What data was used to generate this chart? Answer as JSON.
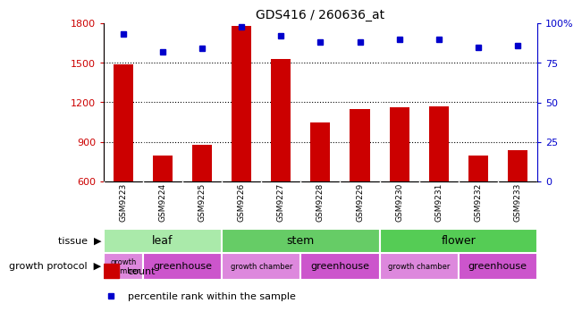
{
  "title": "GDS416 / 260636_at",
  "samples": [
    "GSM9223",
    "GSM9224",
    "GSM9225",
    "GSM9226",
    "GSM9227",
    "GSM9228",
    "GSM9229",
    "GSM9230",
    "GSM9231",
    "GSM9232",
    "GSM9233"
  ],
  "counts": [
    1490,
    800,
    880,
    1780,
    1530,
    1050,
    1150,
    1160,
    1170,
    800,
    840
  ],
  "percentiles": [
    93,
    82,
    84,
    98,
    92,
    88,
    88,
    90,
    90,
    85,
    86
  ],
  "ymin": 600,
  "ymax": 1800,
  "yticks": [
    600,
    900,
    1200,
    1500,
    1800
  ],
  "right_yticks": [
    0,
    25,
    50,
    75,
    100
  ],
  "tissue_groups": [
    {
      "label": "leaf",
      "start": 0,
      "end": 3,
      "color": "#AAEAAA"
    },
    {
      "label": "stem",
      "start": 3,
      "end": 7,
      "color": "#66CC66"
    },
    {
      "label": "flower",
      "start": 7,
      "end": 11,
      "color": "#55CC55"
    }
  ],
  "growth_groups": [
    {
      "label": "growth\nchamber",
      "start": 0,
      "end": 1,
      "color": "#DD88DD"
    },
    {
      "label": "greenhouse",
      "start": 1,
      "end": 3,
      "color": "#CC55CC"
    },
    {
      "label": "growth chamber",
      "start": 3,
      "end": 5,
      "color": "#DD88DD"
    },
    {
      "label": "greenhouse",
      "start": 5,
      "end": 7,
      "color": "#CC55CC"
    },
    {
      "label": "growth chamber",
      "start": 7,
      "end": 9,
      "color": "#DD88DD"
    },
    {
      "label": "greenhouse",
      "start": 9,
      "end": 11,
      "color": "#CC55CC"
    }
  ],
  "bar_color": "#CC0000",
  "dot_color": "#0000CC",
  "left_axis_color": "#CC0000",
  "right_axis_color": "#0000CC",
  "background_color": "#FFFFFF",
  "xband_color": "#C8C8C8",
  "tissue_label": "tissue",
  "growth_label": "growth protocol",
  "legend_count_label": "count",
  "legend_percentile_label": "percentile rank within the sample"
}
